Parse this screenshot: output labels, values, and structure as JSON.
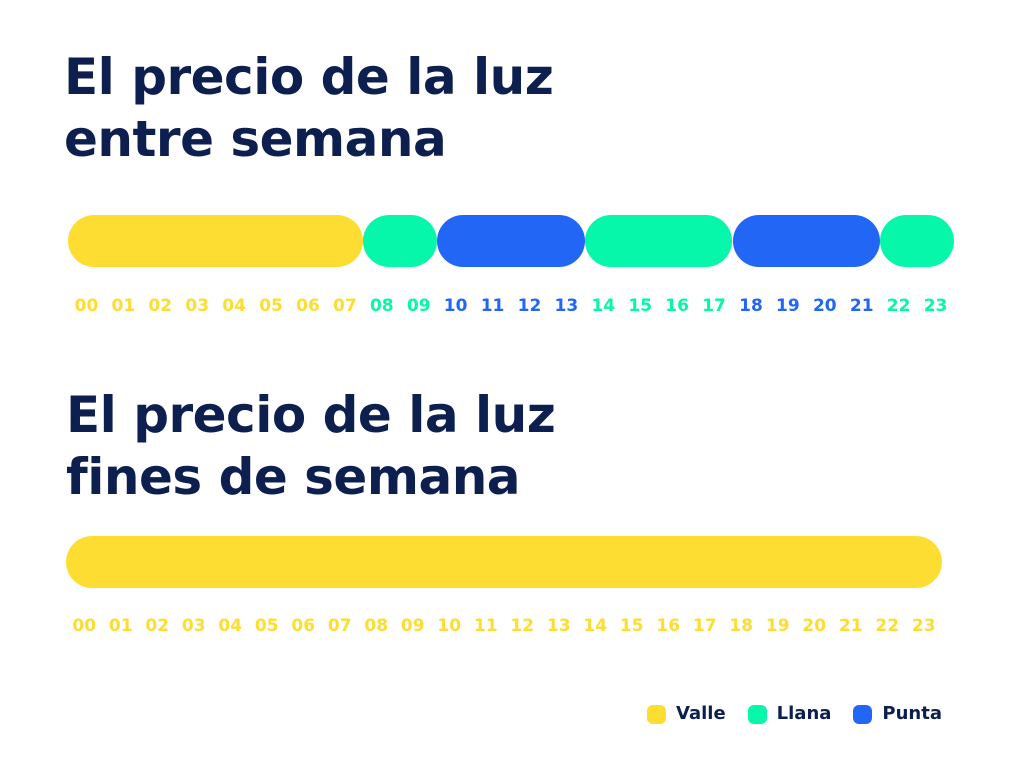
{
  "chart_data": [
    {
      "type": "timeline",
      "title_lines": [
        "El precio de la luz",
        "entre semana"
      ],
      "hours": [
        "00",
        "01",
        "02",
        "03",
        "04",
        "05",
        "06",
        "07",
        "08",
        "09",
        "10",
        "11",
        "12",
        "13",
        "14",
        "15",
        "16",
        "17",
        "18",
        "19",
        "20",
        "21",
        "22",
        "23"
      ],
      "tariff_by_hour": [
        "Valle",
        "Valle",
        "Valle",
        "Valle",
        "Valle",
        "Valle",
        "Valle",
        "Valle",
        "Llana",
        "Llana",
        "Punta",
        "Punta",
        "Punta",
        "Punta",
        "Llana",
        "Llana",
        "Llana",
        "Llana",
        "Punta",
        "Punta",
        "Punta",
        "Punta",
        "Llana",
        "Llana"
      ],
      "segments": [
        {
          "tariff": "Valle",
          "from_hour": 0,
          "to_hour": 8
        },
        {
          "tariff": "Llana",
          "from_hour": 8,
          "to_hour": 10
        },
        {
          "tariff": "Punta",
          "from_hour": 10,
          "to_hour": 14
        },
        {
          "tariff": "Llana",
          "from_hour": 14,
          "to_hour": 18
        },
        {
          "tariff": "Punta",
          "from_hour": 18,
          "to_hour": 22
        },
        {
          "tariff": "Llana",
          "from_hour": 22,
          "to_hour": 24
        }
      ]
    },
    {
      "type": "timeline",
      "title_lines": [
        "El precio de la luz",
        "fines de semana"
      ],
      "hours": [
        "00",
        "01",
        "02",
        "03",
        "04",
        "05",
        "06",
        "07",
        "08",
        "09",
        "10",
        "11",
        "12",
        "13",
        "14",
        "15",
        "16",
        "17",
        "18",
        "19",
        "20",
        "21",
        "22",
        "23"
      ],
      "tariff_by_hour": [
        "Valle",
        "Valle",
        "Valle",
        "Valle",
        "Valle",
        "Valle",
        "Valle",
        "Valle",
        "Valle",
        "Valle",
        "Valle",
        "Valle",
        "Valle",
        "Valle",
        "Valle",
        "Valle",
        "Valle",
        "Valle",
        "Valle",
        "Valle",
        "Valle",
        "Valle",
        "Valle",
        "Valle"
      ],
      "segments": [
        {
          "tariff": "Valle",
          "from_hour": 0,
          "to_hour": 24
        }
      ]
    }
  ],
  "legend": [
    {
      "name": "Valle",
      "color": "#fedd33"
    },
    {
      "name": "Llana",
      "color": "#06f7a9"
    },
    {
      "name": "Punta",
      "color": "#2166f5"
    }
  ],
  "colors": {
    "title": "#0c1f4f",
    "Valle": "#fedd33",
    "Llana": "#06f7a9",
    "Punta": "#2166f5"
  }
}
